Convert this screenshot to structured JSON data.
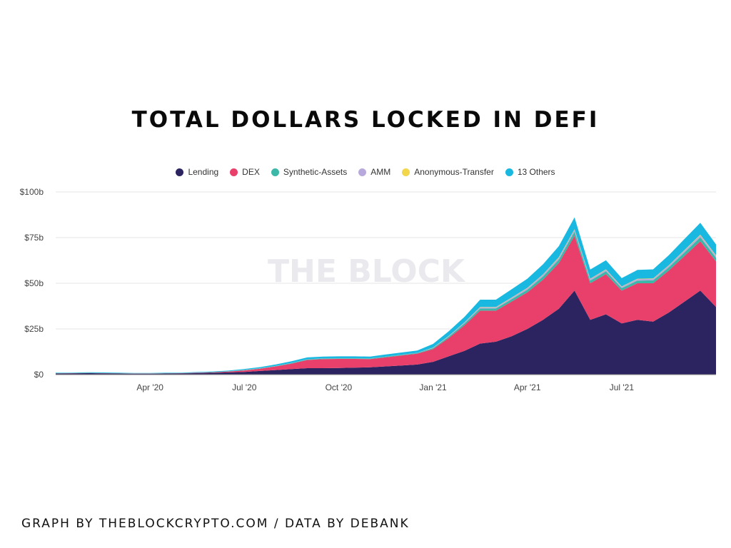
{
  "header": {
    "title": "TOTAL DOLLARS LOCKED IN DEFI"
  },
  "footer": {
    "credit": "GRAPH BY THEBLOCKCRYPTO.COM / DATA BY DEBANK"
  },
  "chart_data": {
    "type": "area",
    "stacked": true,
    "title": "TOTAL DOLLARS LOCKED IN DEFI",
    "watermark": "THE BLOCK",
    "xlabel": "",
    "ylabel": "",
    "ylim": [
      0,
      100
    ],
    "y_unit": "billion USD",
    "yticks": [
      "$0",
      "$25b",
      "$50b",
      "$75b",
      "$100b"
    ],
    "ytick_values": [
      0,
      25,
      50,
      75,
      100
    ],
    "xticks": [
      "Apr '20",
      "Jul '20",
      "Oct '20",
      "Jan '21",
      "Apr '21",
      "Jul '21"
    ],
    "xtick_months": [
      3,
      6,
      9,
      12,
      15,
      18
    ],
    "x_months": [
      0,
      0.5,
      1,
      1.5,
      2,
      2.5,
      3,
      3.5,
      4,
      4.5,
      5,
      5.5,
      6,
      6.5,
      7,
      7.5,
      8,
      8.5,
      9,
      9.5,
      10,
      10.5,
      11,
      11.5,
      12,
      12.5,
      13,
      13.5,
      14,
      14.5,
      15,
      15.5,
      16,
      16.5,
      17,
      17.5,
      18,
      18.5,
      19,
      19.5,
      20,
      20.5,
      21
    ],
    "legend": [
      "Lending",
      "DEX",
      "Synthetic-Assets",
      "AMM",
      "Anonymous-Transfer",
      "13 Others"
    ],
    "legend_position": "top-center",
    "grid": true,
    "series": [
      {
        "name": "Lending",
        "color": "#2b2460",
        "values": [
          0.6,
          0.7,
          0.8,
          0.7,
          0.6,
          0.5,
          0.5,
          0.6,
          0.7,
          0.8,
          1.0,
          1.2,
          1.5,
          2.0,
          2.5,
          3.0,
          3.5,
          3.5,
          3.6,
          3.8,
          4.0,
          4.5,
          5.0,
          5.5,
          7.0,
          10.0,
          13.0,
          17.0,
          18.0,
          21.0,
          25.0,
          30.0,
          36.0,
          46.0,
          30.0,
          33.0,
          28.0,
          30.0,
          29.0,
          34.0,
          40.0,
          46.0,
          37.0
        ]
      },
      {
        "name": "DEX",
        "color": "#e8406a",
        "values": [
          0.1,
          0.1,
          0.1,
          0.1,
          0.1,
          0.1,
          0.1,
          0.1,
          0.1,
          0.2,
          0.3,
          0.5,
          0.8,
          1.2,
          2.0,
          3.0,
          4.5,
          5.0,
          5.0,
          4.8,
          4.5,
          5.0,
          5.5,
          6.0,
          7.0,
          10.0,
          14.0,
          18.0,
          17.0,
          19.0,
          20.0,
          22.0,
          25.0,
          30.0,
          20.0,
          22.0,
          18.0,
          20.0,
          21.0,
          23.0,
          25.0,
          27.0,
          25.0
        ]
      },
      {
        "name": "Synthetic-Assets",
        "color": "#3bb8a8",
        "values": [
          0.1,
          0.1,
          0.1,
          0.1,
          0.1,
          0.1,
          0.1,
          0.1,
          0.1,
          0.1,
          0.1,
          0.1,
          0.2,
          0.2,
          0.2,
          0.3,
          0.3,
          0.3,
          0.3,
          0.3,
          0.3,
          0.3,
          0.3,
          0.3,
          0.5,
          0.8,
          1.0,
          1.2,
          1.2,
          1.3,
          1.5,
          1.8,
          2.0,
          2.2,
          1.5,
          1.6,
          1.4,
          1.5,
          1.6,
          1.8,
          2.0,
          2.2,
          2.0
        ]
      },
      {
        "name": "AMM",
        "color": "#b8a9dc",
        "values": [
          0.0,
          0.0,
          0.0,
          0.0,
          0.0,
          0.0,
          0.0,
          0.0,
          0.0,
          0.0,
          0.0,
          0.0,
          0.1,
          0.1,
          0.1,
          0.1,
          0.1,
          0.1,
          0.1,
          0.1,
          0.1,
          0.1,
          0.1,
          0.1,
          0.2,
          0.3,
          0.5,
          0.6,
          0.6,
          0.7,
          0.8,
          0.9,
          1.0,
          1.1,
          0.8,
          0.8,
          0.7,
          0.8,
          0.8,
          0.9,
          1.0,
          1.1,
          1.0
        ]
      },
      {
        "name": "Anonymous-Transfer",
        "color": "#f2d64b",
        "values": [
          0.0,
          0.0,
          0.0,
          0.0,
          0.0,
          0.0,
          0.0,
          0.0,
          0.0,
          0.0,
          0.0,
          0.0,
          0.0,
          0.0,
          0.0,
          0.0,
          0.0,
          0.0,
          0.0,
          0.0,
          0.0,
          0.0,
          0.0,
          0.0,
          0.1,
          0.1,
          0.1,
          0.2,
          0.2,
          0.2,
          0.2,
          0.2,
          0.3,
          0.3,
          0.2,
          0.2,
          0.2,
          0.2,
          0.2,
          0.2,
          0.3,
          0.3,
          0.3
        ]
      },
      {
        "name": "13 Others",
        "color": "#19b8e0",
        "values": [
          0.2,
          0.2,
          0.3,
          0.3,
          0.2,
          0.2,
          0.2,
          0.2,
          0.2,
          0.3,
          0.3,
          0.4,
          0.5,
          0.6,
          0.8,
          0.9,
          1.0,
          1.0,
          1.0,
          1.0,
          1.0,
          1.1,
          1.2,
          1.3,
          2.0,
          2.5,
          3.0,
          4.0,
          4.0,
          4.5,
          5.0,
          5.5,
          6.0,
          6.5,
          5.0,
          5.0,
          4.5,
          4.8,
          5.0,
          5.5,
          6.0,
          6.5,
          6.0
        ]
      }
    ]
  }
}
